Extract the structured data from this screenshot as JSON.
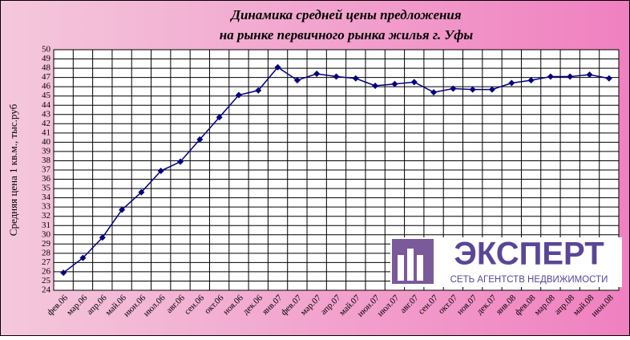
{
  "chart_data": {
    "type": "line",
    "title": [
      "Динамика средней цены предложения",
      "на рынке первичного рынка жилья г. Уфы"
    ],
    "y_label": "Средняя цена 1 кв.м., тыс.руб",
    "categories": [
      "фев.06",
      "мар.06",
      "апр.06",
      "май.06",
      "июн.06",
      "июл.06",
      "авг.06",
      "сен.06",
      "окт.06",
      "ноя.06",
      "дек.06",
      "янв.07",
      "фев.07",
      "мар.07",
      "апр.07",
      "май.07",
      "июн.07",
      "июл.07",
      "авг.07",
      "сен.07",
      "окт.07",
      "ноя.07",
      "дек.07",
      "янв.08",
      "фев.08",
      "мар.08",
      "апр.08",
      "май.08",
      "июн.08"
    ],
    "values": [
      25.9,
      27.5,
      29.7,
      32.7,
      34.6,
      36.9,
      37.9,
      40.3,
      42.7,
      45.1,
      45.6,
      48.1,
      46.7,
      47.4,
      47.1,
      46.9,
      46.1,
      46.3,
      46.5,
      45.4,
      45.8,
      45.7,
      45.7,
      46.4,
      46.7,
      47.1,
      47.1,
      47.3,
      46.9
    ],
    "color": "#000080",
    "ylim": [
      24,
      50
    ],
    "yticks": [
      24,
      25,
      26,
      27,
      28,
      29,
      30,
      31,
      32,
      33,
      34,
      35,
      36,
      37,
      38,
      39,
      40,
      41,
      42,
      43,
      44,
      45,
      46,
      47,
      48,
      49,
      50
    ],
    "grid": true
  },
  "logo": {
    "name": "ЭКСПЕРТ",
    "tagline": "СЕТЬ АГЕНТСТВ НЕДВИЖИМОСТИ"
  }
}
